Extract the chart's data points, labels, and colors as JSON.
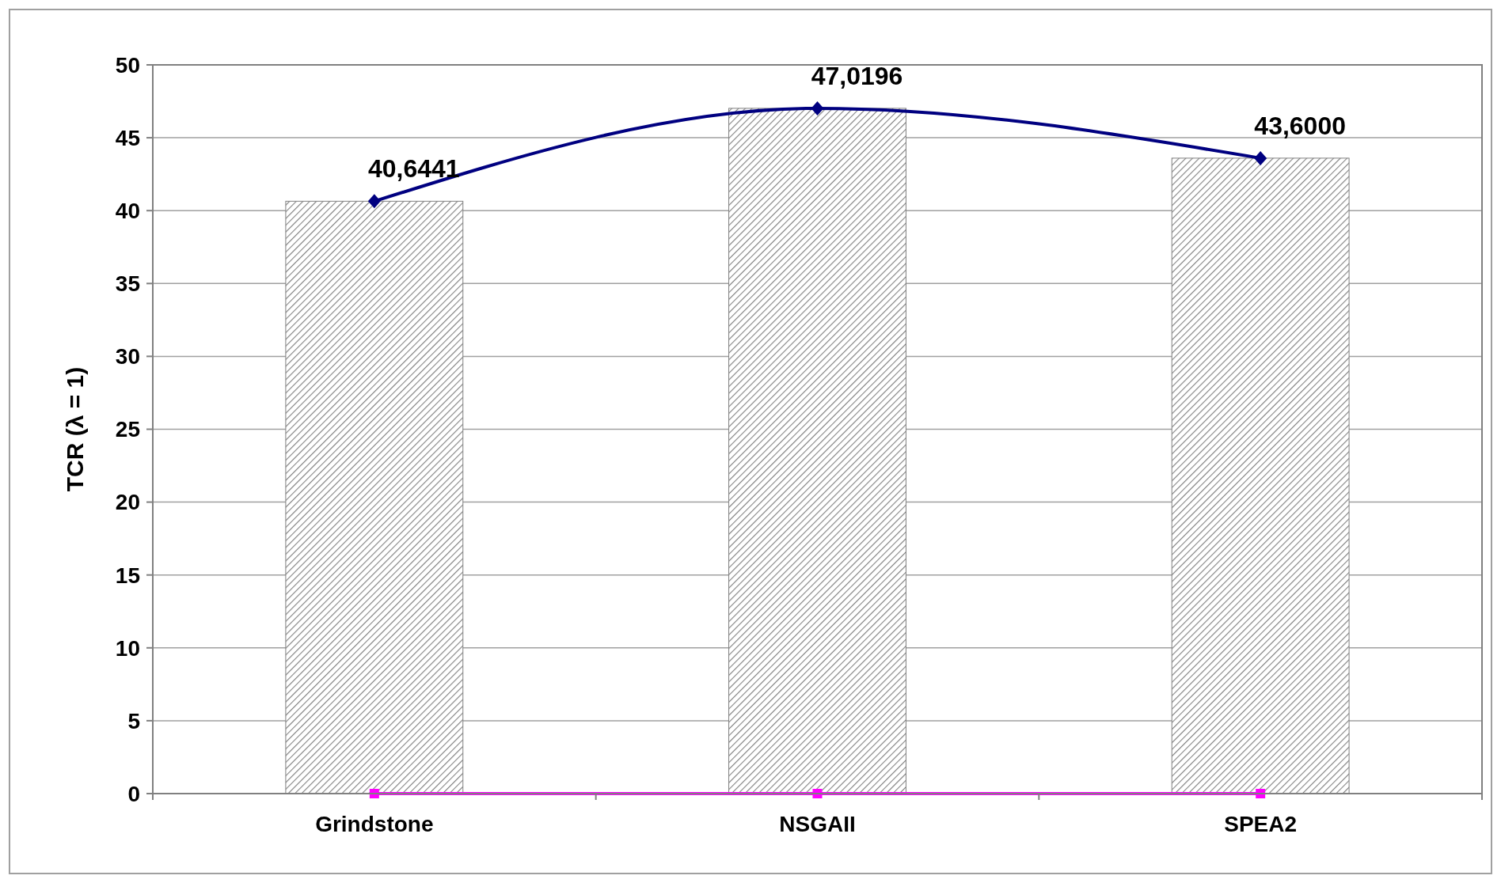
{
  "chart_data": {
    "type": "bar",
    "ylabel": "TCR (λ = 1)",
    "categories": [
      "Grindstone",
      "NSGAII",
      "SPEA2"
    ],
    "series": [
      {
        "color": "#808080",
        "values": [
          40.6441,
          47.0196,
          43.6
        ],
        "value_labels": [
          "40,6441",
          "47,0196",
          "43,6000"
        ]
      },
      {
        "type": "line",
        "color": "#000080",
        "values": [
          40.6441,
          47.0196,
          43.6
        ],
        "marker": "diamond"
      },
      {
        "type": "line",
        "color": "#ff00ff",
        "values": [
          0,
          0,
          0
        ],
        "marker": "square"
      }
    ],
    "ylim": [
      0,
      50
    ],
    "yticks": [
      0,
      5,
      10,
      15,
      20,
      25,
      30,
      35,
      40,
      45,
      50
    ],
    "grid": "y"
  }
}
